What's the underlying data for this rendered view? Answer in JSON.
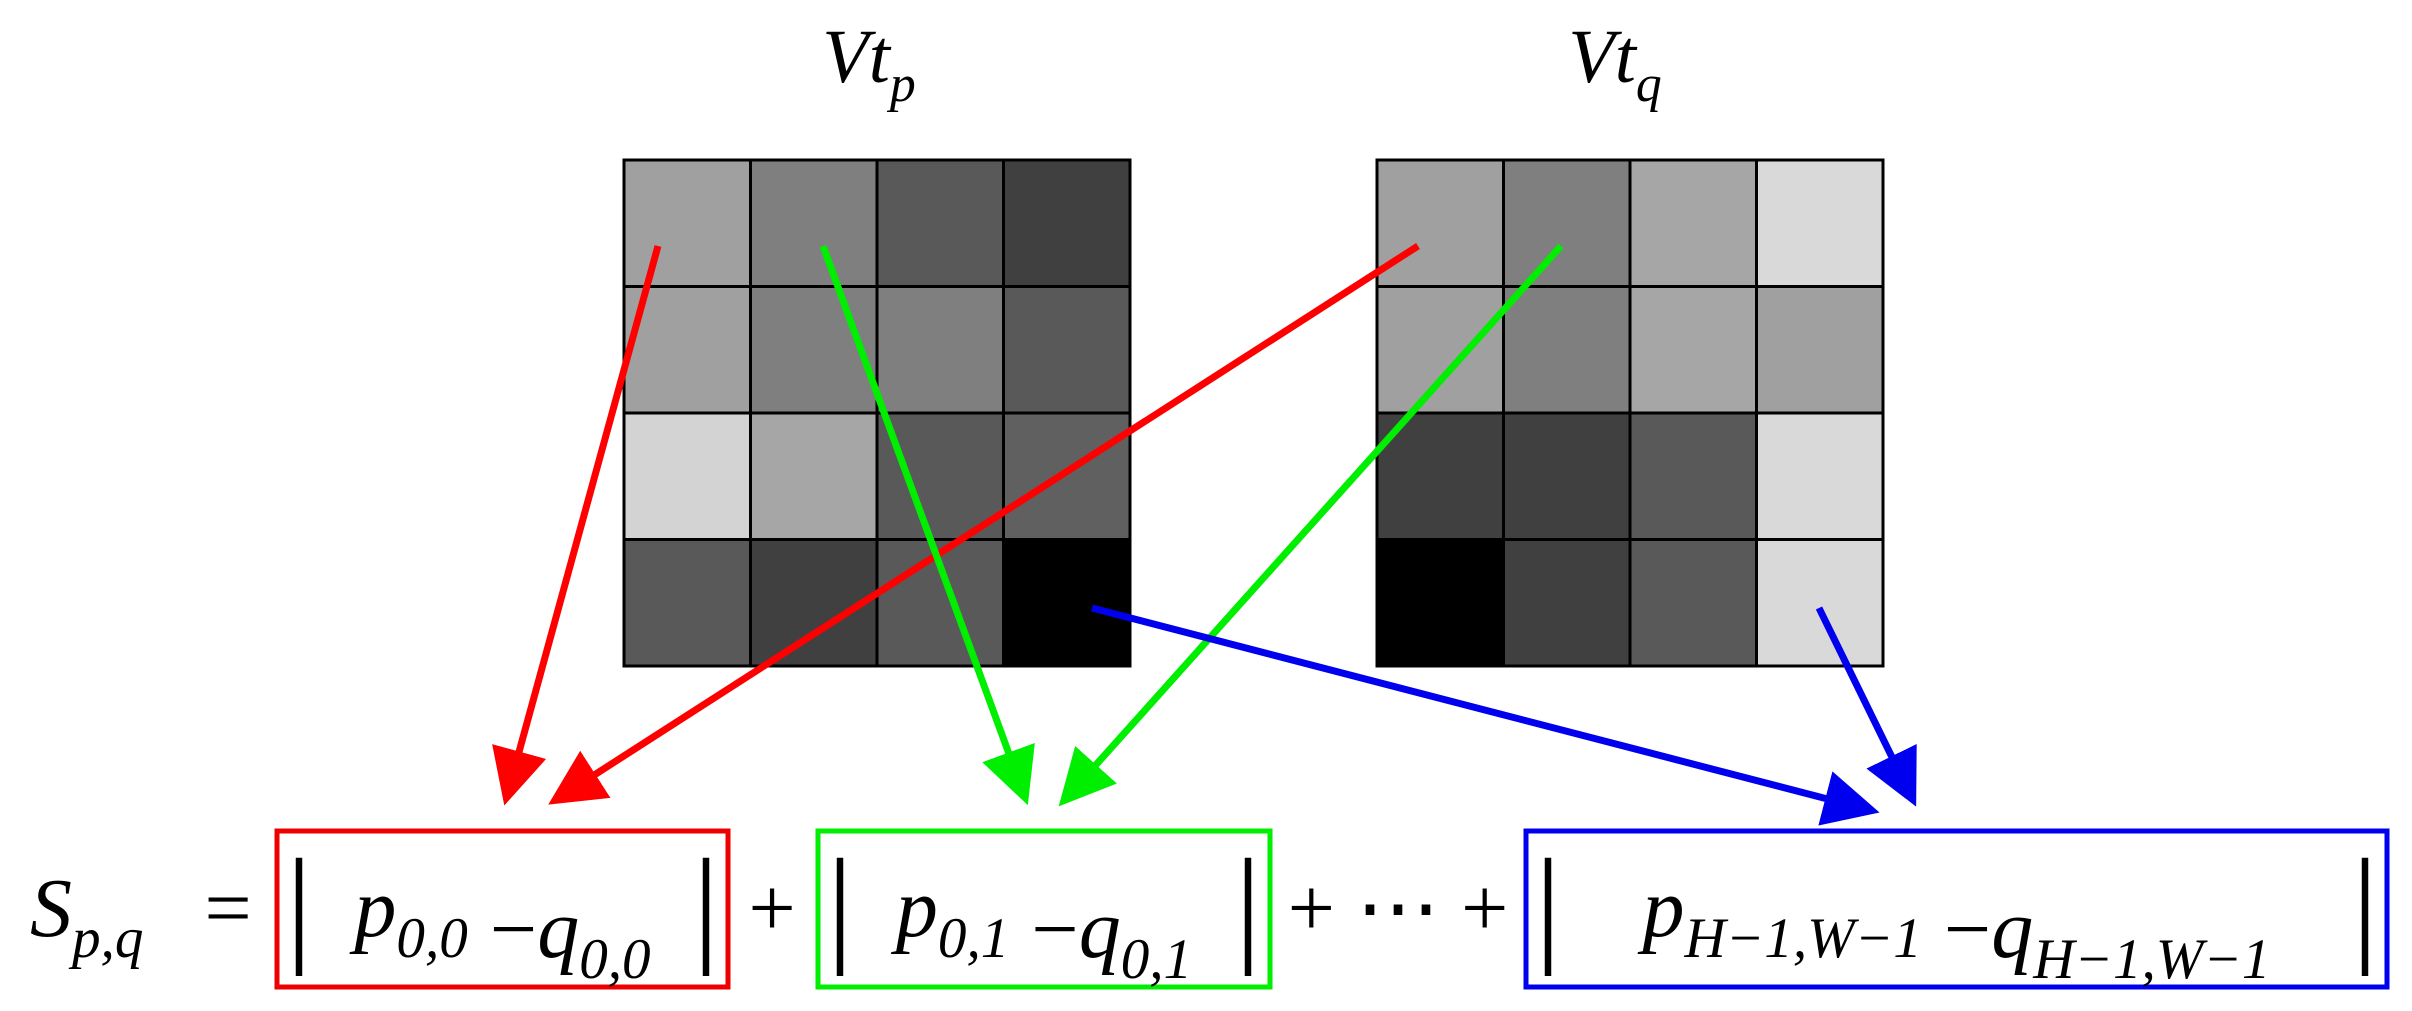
{
  "labels": [
    {
      "base": "Vt",
      "sub": "p"
    },
    {
      "base": "Vt",
      "sub": "q"
    }
  ],
  "equation": {
    "lhs": {
      "base": "S",
      "sub": "p,q"
    },
    "equals": "=",
    "terms": [
      {
        "open": "|",
        "p": "p",
        "p_sub": "0,0",
        "minus": "−",
        "q": "q",
        "q_sub": "0,0",
        "close": "|"
      },
      {
        "open": "|",
        "p": "p",
        "p_sub": "0,1",
        "minus": "−",
        "q": "q",
        "q_sub": "0,1",
        "close": "|"
      },
      {
        "open": "|",
        "p": "p",
        "p_sub": "H−1,W−1",
        "minus": "−",
        "q": "q",
        "q_sub": "H−1,W−1",
        "close": "|"
      }
    ],
    "operators": [
      "+",
      "+ ⋯ +"
    ]
  }
}
